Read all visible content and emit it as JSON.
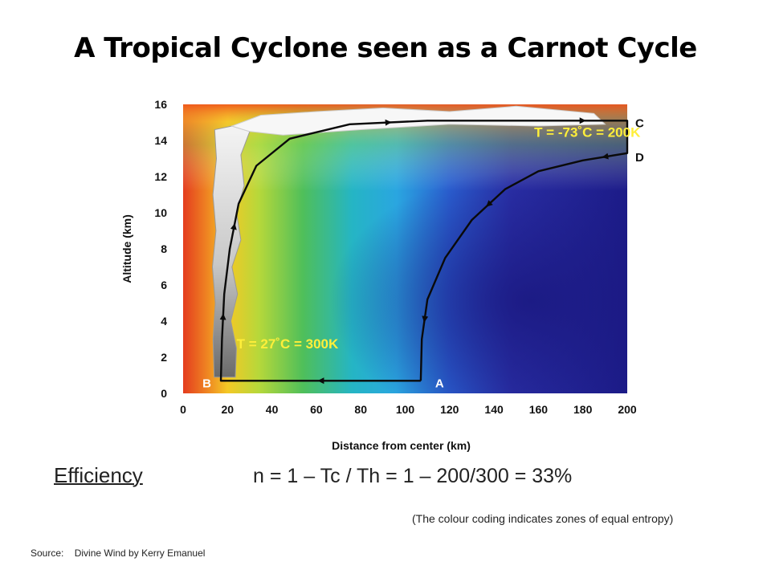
{
  "slide": {
    "title": "A Tropical Cyclone seen as a Carnot Cycle",
    "efficiency_label": "Efficiency",
    "efficiency_formula": "n = 1 – Tc / Th = 1 – 200/300 = 33%",
    "colour_note": "(The  colour coding  indicates  zones of equal  entropy)",
    "source_label": "Source:",
    "source_text": "Divine Wind by Kerry Emanuel"
  },
  "chart_data": {
    "type": "line",
    "title": "",
    "xlabel": "Distance from center (km)",
    "ylabel": "Altitude (km)",
    "xlim": [
      0,
      200
    ],
    "ylim": [
      0,
      16
    ],
    "x_ticks": [
      "0",
      "20",
      "40",
      "60",
      "80",
      "100",
      "120",
      "140",
      "160",
      "180",
      "200"
    ],
    "y_ticks": [
      "0",
      "2",
      "4",
      "6",
      "8",
      "10",
      "12",
      "14",
      "16"
    ],
    "grid": false,
    "cycle_points": [
      {
        "name": "A",
        "x": 107,
        "y": 0.7
      },
      {
        "name": "B",
        "x": 17,
        "y": 0.7
      },
      {
        "name": "C",
        "x": 200,
        "y": 15.1
      },
      {
        "name": "D",
        "x": 200,
        "y": 13.3
      }
    ],
    "cycle_path": [
      {
        "x": 107,
        "y": 0.7
      },
      {
        "x": 17,
        "y": 0.7
      },
      {
        "x": 17.5,
        "y": 3
      },
      {
        "x": 18.5,
        "y": 5.5
      },
      {
        "x": 21,
        "y": 8
      },
      {
        "x": 25,
        "y": 10.5
      },
      {
        "x": 33,
        "y": 12.6
      },
      {
        "x": 48,
        "y": 14.1
      },
      {
        "x": 75,
        "y": 14.9
      },
      {
        "x": 110,
        "y": 15.1
      },
      {
        "x": 160,
        "y": 15.1
      },
      {
        "x": 200,
        "y": 15.1
      },
      {
        "x": 200,
        "y": 13.3
      },
      {
        "x": 180,
        "y": 12.9
      },
      {
        "x": 160,
        "y": 12.3
      },
      {
        "x": 145,
        "y": 11.3
      },
      {
        "x": 130,
        "y": 9.6
      },
      {
        "x": 118,
        "y": 7.5
      },
      {
        "x": 110,
        "y": 5.2
      },
      {
        "x": 107.5,
        "y": 3
      },
      {
        "x": 107,
        "y": 0.7
      }
    ],
    "annotations": [
      {
        "text": "T = -73˚C = 200K",
        "x": 182,
        "y": 14.2
      },
      {
        "text": "T = 27˚C = 300K",
        "x": 47,
        "y": 2.5
      }
    ],
    "colors": {
      "path": "#0a0a0a",
      "annotation": "#ffef3a",
      "core_warm": "#e43c1e",
      "low_entropy": "#1b1a8a"
    }
  }
}
